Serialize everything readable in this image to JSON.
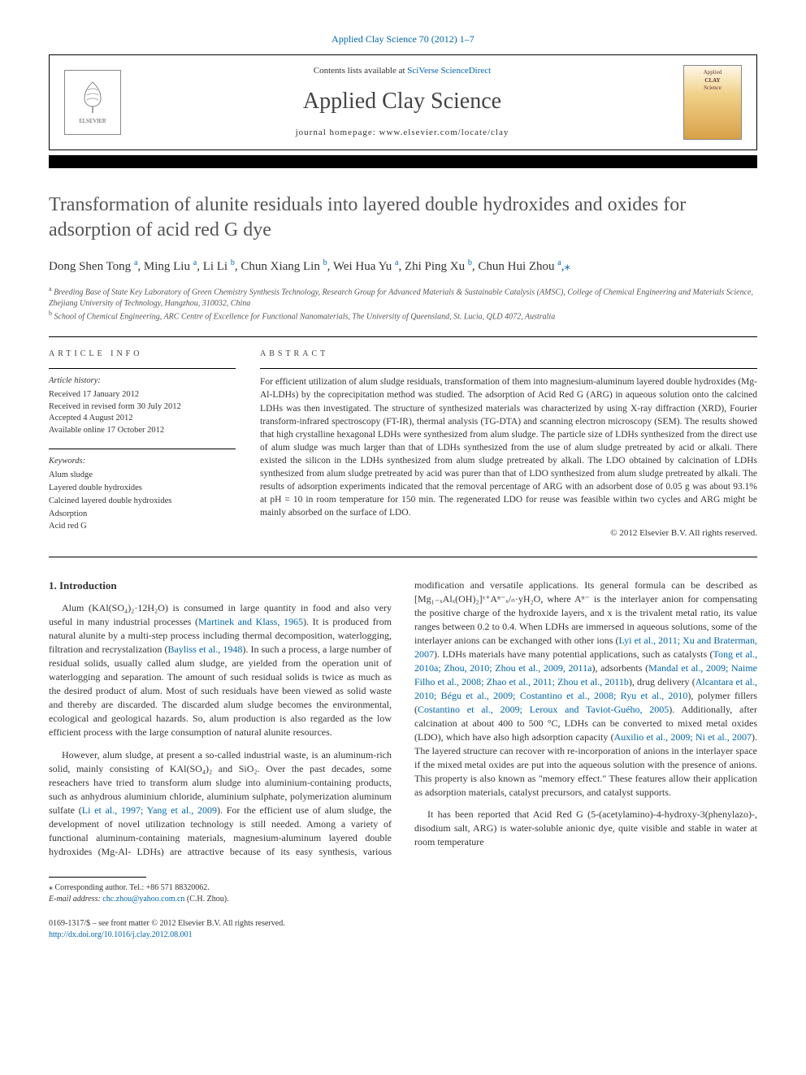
{
  "journal_ref": "Applied Clay Science 70 (2012) 1–7",
  "header": {
    "contents_prefix": "Contents lists available at ",
    "contents_link": "SciVerse ScienceDirect",
    "journal_title": "Applied Clay Science",
    "homepage_prefix": "journal homepage: ",
    "homepage_url": "www.elsevier.com/locate/clay",
    "publisher_label": "ELSEVIER",
    "cover_label_top": "Applied",
    "cover_label_mid1": "CLAY",
    "cover_label_mid2": "Science"
  },
  "article": {
    "title": "Transformation of alunite residuals into layered double hydroxides and oxides for adsorption of acid red G dye",
    "authors": [
      {
        "name": "Dong Shen Tong",
        "affil": "a"
      },
      {
        "name": "Ming Liu",
        "affil": "a"
      },
      {
        "name": "Li Li",
        "affil": "b"
      },
      {
        "name": "Chun Xiang Lin",
        "affil": "b"
      },
      {
        "name": "Wei Hua Yu",
        "affil": "a"
      },
      {
        "name": "Zhi Ping Xu",
        "affil": "b"
      },
      {
        "name": "Chun Hui Zhou",
        "affil": "a",
        "corresponding": true
      }
    ],
    "affiliations": {
      "a": "Breeding Base of State Key Laboratory of Green Chemistry Synthesis Technology, Research Group for Advanced Materials & Sustainable Catalysis (AMSC), College of Chemical Engineering and Materials Science, Zhejiang University of Technology, Hangzhou, 310032, China",
      "b": "School of Chemical Engineering, ARC Centre of Excellence for Functional Nanomaterials, The University of Queensland, St. Lucia, QLD 4072, Australia"
    }
  },
  "info": {
    "section_label": "article info",
    "history_label": "Article history:",
    "received": "Received 17 January 2012",
    "revised": "Received in revised form 30 July 2012",
    "accepted": "Accepted 4 August 2012",
    "online": "Available online 17 October 2012",
    "keywords_label": "Keywords:",
    "keywords": [
      "Alum sludge",
      "Layered double hydroxides",
      "Calcined layered double hydroxides",
      "Adsorption",
      "Acid red G"
    ]
  },
  "abstract": {
    "section_label": "abstract",
    "text": "For efficient utilization of alum sludge residuals, transformation of them into magnesium-aluminum layered double hydroxides (Mg-Al-LDHs) by the coprecipitation method was studied. The adsorption of Acid Red G (ARG) in aqueous solution onto the calcined LDHs was then investigated. The structure of synthesized materials was characterized by using X-ray diffraction (XRD), Fourier transform-infrared spectroscopy (FT-IR), thermal analysis (TG-DTA) and scanning electron microscopy (SEM). The results showed that high crystalline hexagonal LDHs were synthesized from alum sludge. The particle size of LDHs synthesized from the direct use of alum sludge was much larger than that of LDHs synthesized from the use of alum sludge pretreated by acid or alkali. There existed the silicon in the LDHs synthesized from alum sludge pretreated by alkali. The LDO obtained by calcination of LDHs synthesized from alum sludge pretreated by acid was purer than that of LDO synthesized from alum sludge pretreated by alkali. The results of adsorption experiments indicated that the removal percentage of ARG with an adsorbent dose of 0.05 g was about 93.1% at pH = 10 in room temperature for 150 min. The regenerated LDO for reuse was feasible within two cycles and ARG might be mainly absorbed on the surface of LDO.",
    "copyright": "© 2012 Elsevier B.V. All rights reserved."
  },
  "body": {
    "intro_heading": "1. Introduction",
    "p1_a": "Alum (KAl(SO₄)₂·12H₂O) is consumed in large quantity in food and also very useful in many industrial processes (",
    "p1_cite1": "Martinek and Klass, 1965",
    "p1_b": "). It is produced from natural alunite by a multi-step process including thermal decomposition, waterlogging, filtration and recrystalization (",
    "p1_cite2": "Bayliss et al., 1948",
    "p1_c": "). In such a process, a large number of residual solids, usually called alum sludge, are yielded from the operation unit of waterlogging and separation. The amount of such residual solids is twice as much as the desired product of alum. Most of such residuals have been viewed as solid waste and thereby are discarded. The discarded alum sludge becomes the environmental, ecological and geological hazards. So, alum production is also regarded as the low efficient process with the large consumption of natural alunite resources.",
    "p2_a": "However, alum sludge, at present a so-called industrial waste, is an aluminum-rich solid, mainly consisting of KAl(SO₄)₂ and SiO₂. Over the past decades, some reseachers have tried to transform alum sludge into aluminium-containing products, such as anhydrous aluminium chloride, aluminium sulphate, polymerization aluminum sulfate (",
    "p2_cite1": "Li et al., 1997; Yang et al., 2009",
    "p2_b": "). For the efficient use of alum sludge, the development of novel utilization technology is still needed. Among a variety of functional aluminum-containing materials, magnesium-aluminum layered double hydroxides (Mg-Al- LDHs) are attractive because of its easy synthesis, various modification and versatile applications. Its general formula can be described as [Mg₁₋ₓAlₓ(OH)₂]ˣ⁺Aⁿ⁻ₓ/ₙ·yH₂O, where Aⁿ⁻ is the interlayer anion for compensating the positive charge of the hydroxide layers, and x is the trivalent metal ratio, its value ranges between 0.2 to 0.4. When LDHs are immersed in aqueous solutions, some of the interlayer anions can be exchanged with other ions (",
    "p2_cite2": "Lyi et al., 2011; Xu and Braterman, 2007",
    "p2_c": "). LDHs materials have many potential applications, such as catalysts (",
    "p2_cite3": "Tong et al., 2010a; Zhou, 2010; Zhou et al., 2009, 2011a",
    "p2_d": "), adsorbents (",
    "p2_cite4": "Mandal et al., 2009; Naime Filho et al., 2008; Zhao et al., 2011; Zhou et al., 2011b",
    "p2_e": "), drug delivery (",
    "p2_cite5": "Alcantara et al., 2010; Bégu et al., 2009; Costantino et al., 2008; Ryu et al., 2010",
    "p2_f": "), polymer fillers (",
    "p2_cite6": "Costantino et al., 2009; Leroux and Taviot-Guého, 2005",
    "p2_g": "). Additionally, after calcination at about 400 to 500 °C, LDHs can be converted to mixed metal oxides (LDO), which have also high adsorption capacity (",
    "p2_cite7": "Auxilio et al., 2009; Ni et al., 2007",
    "p2_h": "). The layered structure can recover with re-incorporation of anions in the interlayer space if the mixed metal oxides are put into the aqueous solution with the presence of anions. This property is also known as \"memory effect.\" These features allow their application as adsorption materials, catalyst precursors, and catalyst supports.",
    "p3": "It has been reported that Acid Red G (5-(acetylamino)-4-hydroxy-3(phenylazo)-, disodium salt, ARG) is water-soluble anionic dye, quite visible and stable in water at room temperature"
  },
  "footer": {
    "corr_label": "⁎ Corresponding author. Tel.: ",
    "corr_phone": "+86 571 88320062.",
    "email_label": "E-mail address: ",
    "email": "chc.zhou@yahoo.com.cn",
    "email_name": " (C.H. Zhou).",
    "issn_line": "0169-1317/$ – see front matter © 2012 Elsevier B.V. All rights reserved.",
    "doi": "http://dx.doi.org/10.1016/j.clay.2012.08.001"
  },
  "colors": {
    "link": "#0066aa",
    "text": "#333333",
    "title_gray": "#555555"
  }
}
